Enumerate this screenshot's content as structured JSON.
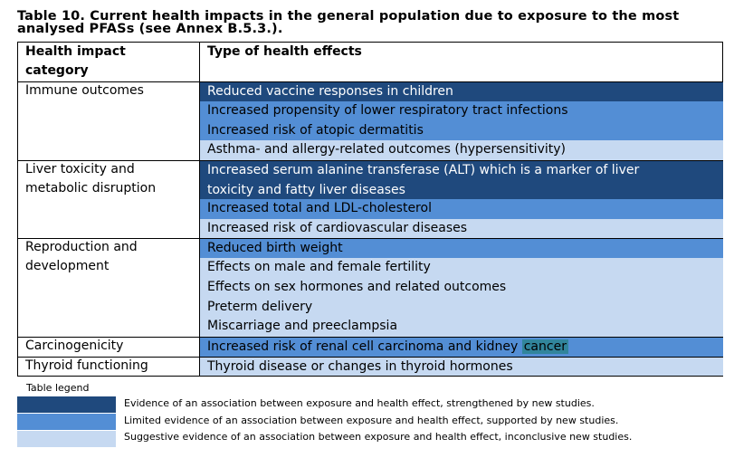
{
  "caption": "Table 10. Current health impacts in the general population due to exposure to the most analysed PFASs (see Annex B.5.3.).",
  "caption_line1": "Table 10. Current health impacts in the general population due to exposure to the most",
  "caption_line2": "analysed PFASs (see Annex B.5.3.).",
  "header": {
    "category_line1": "Health impact",
    "category_line2": "category",
    "effects": "Type of health effects"
  },
  "categories": [
    {
      "line1": "Immune outcomes",
      "line2": ""
    },
    {
      "line1": "Liver toxicity and",
      "line2": "metabolic disruption"
    },
    {
      "line1": "Reproduction and",
      "line2": "development"
    },
    {
      "line1": "Carcinogenicity",
      "line2": ""
    },
    {
      "line1": "Thyroid functioning",
      "line2": ""
    }
  ],
  "effects": [
    {
      "text": "Reduced vaccine responses in children",
      "level": "strong"
    },
    {
      "text": "Increased propensity of lower respiratory tract infections",
      "level": "limited"
    },
    {
      "text": "Increased risk of atopic dermatitis",
      "level": "limited"
    },
    {
      "text": "Asthma- and allergy-related outcomes (hypersensitivity)",
      "level": "suggestive"
    },
    {
      "line1": "Increased serum alanine transferase (ALT) which is a marker of liver",
      "line2": "toxicity and fatty liver diseases",
      "level": "strong"
    },
    {
      "text": "Increased total and LDL-cholesterol",
      "level": "limited"
    },
    {
      "text": "Increased risk of cardiovascular diseases",
      "level": "suggestive"
    },
    {
      "text": "Reduced birth weight",
      "level": "limited"
    },
    {
      "text": "Effects on male and female fertility",
      "level": "suggestive"
    },
    {
      "text": "Effects on sex hormones and related outcomes",
      "level": "suggestive"
    },
    {
      "text": "Preterm delivery",
      "level": "suggestive"
    },
    {
      "text": "Miscarriage and preeclampsia",
      "level": "suggestive"
    },
    {
      "text_prefix": "Increased risk of renal cell carcinoma and kidney ",
      "text_highlight": "cancer",
      "level": "limited"
    },
    {
      "text": "Thyroid disease or changes in thyroid hormones",
      "level": "suggestive"
    }
  ],
  "legend": {
    "title": "Table legend",
    "items": [
      {
        "color": "#1f497d",
        "text": "Evidence of an association between exposure and health effect, strengthened by new studies."
      },
      {
        "color": "#538ed5",
        "text": "Limited evidence of an association between exposure and health effect, supported by new studies."
      },
      {
        "color": "#c6d9f1",
        "text": "Suggestive evidence of an association between exposure and health effect, inconclusive new studies."
      }
    ]
  },
  "colors": {
    "strong": "#1f497d",
    "limited": "#538ed5",
    "suggestive": "#c6d9f1",
    "highlight": "#31859c"
  }
}
